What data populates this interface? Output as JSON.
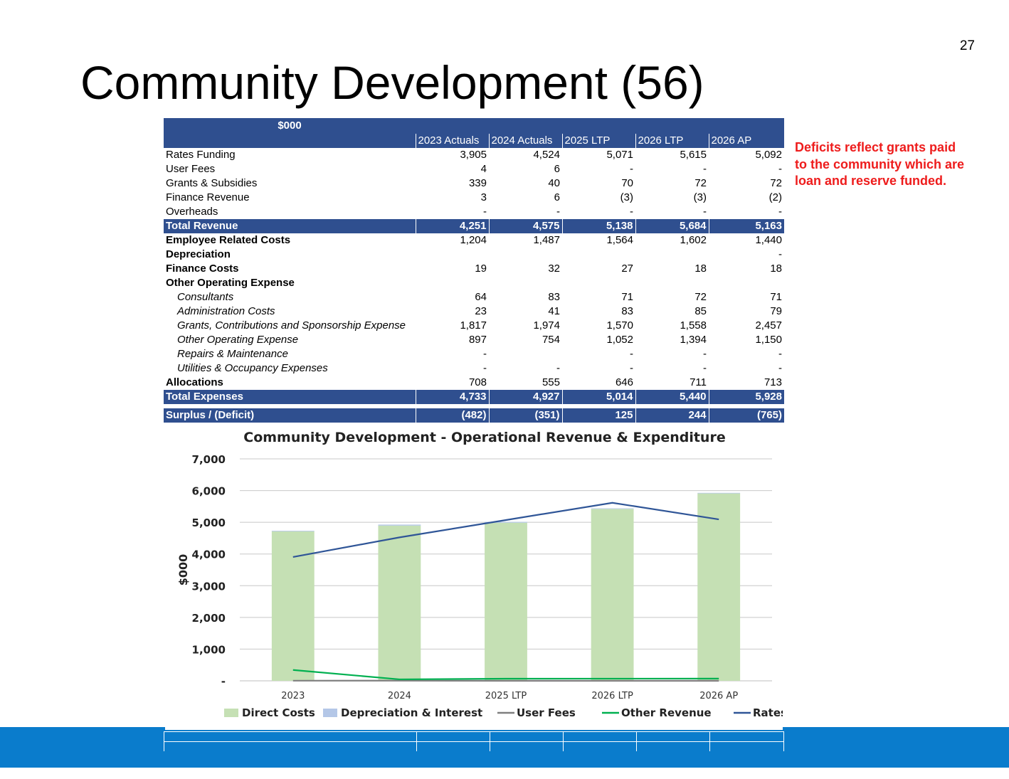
{
  "page_number": "27",
  "title": "Community Development (56)",
  "note": "Deficits reflect grants paid to the community which are loan and reserve funded.",
  "table": {
    "unit_header": "$000",
    "columns": [
      "2023 Actuals",
      "2024 Actuals",
      "2025 LTP",
      "2026 LTP",
      "2026 AP"
    ],
    "rows": [
      {
        "label": "Rates Funding",
        "style": "normal",
        "values": [
          "3,905",
          "4,524",
          "5,071",
          "5,615",
          "5,092"
        ]
      },
      {
        "label": "User Fees",
        "style": "normal",
        "values": [
          "4",
          "6",
          "-",
          "-",
          "-"
        ]
      },
      {
        "label": "Grants & Subsidies",
        "style": "normal",
        "values": [
          "339",
          "40",
          "70",
          "72",
          "72"
        ]
      },
      {
        "label": "Finance Revenue",
        "style": "normal",
        "values": [
          "3",
          "6",
          "(3)",
          "(3)",
          "(2)"
        ]
      },
      {
        "label": "Overheads",
        "style": "normal",
        "values": [
          "-",
          "-",
          "-",
          "-",
          "-"
        ]
      },
      {
        "label": "Total Revenue",
        "style": "total",
        "values": [
          "4,251",
          "4,575",
          "5,138",
          "5,684",
          "5,163"
        ]
      },
      {
        "label": "Employee Related Costs",
        "style": "bold",
        "values": [
          "1,204",
          "1,487",
          "1,564",
          "1,602",
          "1,440"
        ]
      },
      {
        "label": "Depreciation",
        "style": "bold",
        "values": [
          "",
          "",
          "",
          "",
          "-"
        ]
      },
      {
        "label": "Finance Costs",
        "style": "bold",
        "values": [
          "19",
          "32",
          "27",
          "18",
          "18"
        ]
      },
      {
        "label": "Other Operating  Expense",
        "style": "bold",
        "values": [
          "",
          "",
          "",
          "",
          ""
        ]
      },
      {
        "label": "Consultants",
        "style": "italic",
        "values": [
          "64",
          "83",
          "71",
          "72",
          "71"
        ]
      },
      {
        "label": "Administration Costs",
        "style": "italic",
        "values": [
          "23",
          "41",
          "83",
          "85",
          "79"
        ]
      },
      {
        "label": "Grants, Contributions and Sponsorship Expense",
        "style": "italic",
        "values": [
          "1,817",
          "1,974",
          "1,570",
          "1,558",
          "2,457"
        ]
      },
      {
        "label": "Other Operating Expense",
        "style": "italic",
        "values": [
          "897",
          "754",
          "1,052",
          "1,394",
          "1,150"
        ]
      },
      {
        "label": "Repairs & Maintenance",
        "style": "italic",
        "values": [
          "-",
          "",
          "-",
          "-",
          "-"
        ]
      },
      {
        "label": "Utilities & Occupancy Expenses",
        "style": "italic",
        "values": [
          "-",
          "-",
          "-",
          "-",
          "-"
        ]
      },
      {
        "label": "Allocations",
        "style": "bold",
        "values": [
          "708",
          "555",
          "646",
          "711",
          "713"
        ]
      },
      {
        "label": "Total Expenses",
        "style": "total",
        "values": [
          "4,733",
          "4,927",
          "5,014",
          "5,440",
          "5,928"
        ]
      },
      {
        "label": "",
        "style": "gap",
        "values": [
          "",
          "",
          "",
          "",
          ""
        ]
      },
      {
        "label": "Surplus / (Deficit)",
        "style": "total",
        "values": [
          "(482)",
          "(351)",
          "125",
          "244",
          "(765)"
        ]
      }
    ]
  },
  "colors": {
    "header_blue": "#2f4f8f",
    "footer_blue": "#0a7ccc",
    "note_red": "#ee1c1c",
    "direct_costs": "#c5e0b4",
    "depreciation_interest": "#b4c7e7",
    "user_fees": "#7f7f7f",
    "other_revenue": "#00b050",
    "rates": "#2f5597"
  },
  "chart_data": {
    "type": "bar",
    "title": "Community Development - Operational Revenue & Expenditure",
    "xlabel": "",
    "ylabel": "$000",
    "ylim": [
      0,
      7000
    ],
    "yticks": [
      0,
      1000,
      2000,
      3000,
      4000,
      5000,
      6000,
      7000
    ],
    "ytick_labels": [
      "-",
      "1,000",
      "2,000",
      "3,000",
      "4,000",
      "5,000",
      "6,000",
      "7,000"
    ],
    "grid": true,
    "legend_position": "bottom",
    "categories": [
      "2023",
      "2024",
      "2025 LTP",
      "2026 LTP",
      "2026 AP"
    ],
    "bar_series": [
      {
        "name": "Direct Costs",
        "type": "stacked-bar",
        "values": [
          4714,
          4895,
          4987,
          5422,
          5910
        ]
      },
      {
        "name": "Depreciation & Interest",
        "type": "stacked-bar",
        "values": [
          19,
          32,
          27,
          18,
          18
        ]
      }
    ],
    "line_series": [
      {
        "name": "User Fees",
        "type": "line",
        "values": [
          4,
          6,
          0,
          0,
          0
        ]
      },
      {
        "name": "Other Revenue",
        "type": "line",
        "values": [
          342,
          46,
          67,
          69,
          70
        ]
      },
      {
        "name": "Rates",
        "type": "line",
        "values": [
          3905,
          4524,
          5071,
          5615,
          5092
        ]
      }
    ]
  }
}
